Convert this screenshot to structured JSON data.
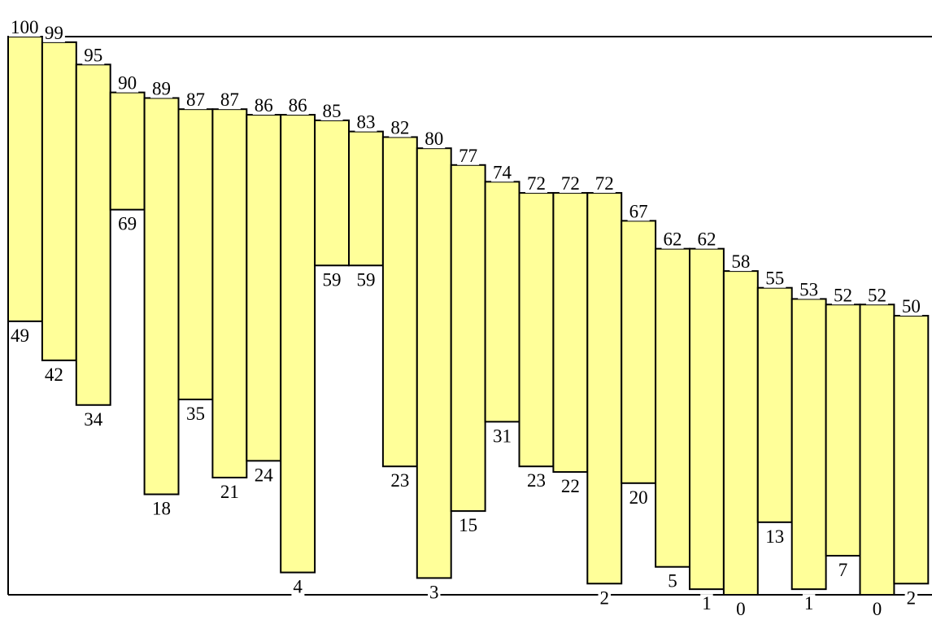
{
  "chart_data": {
    "type": "floating-bar",
    "title": "",
    "xlabel": "",
    "ylabel": "",
    "ylim": [
      0,
      100
    ],
    "bar_color": "#ffff99",
    "edge_color": "#000000",
    "grid": false,
    "legend": "none",
    "series": [
      {
        "high": [
          100,
          99,
          95,
          90,
          89,
          87,
          87,
          86,
          86,
          85,
          83,
          82,
          80,
          77,
          74,
          72,
          72,
          72,
          67,
          62,
          62,
          58,
          55,
          53,
          52,
          52,
          50
        ],
        "low": [
          49,
          42,
          34,
          69,
          18,
          35,
          21,
          24,
          4,
          59,
          59,
          23,
          3,
          15,
          31,
          23,
          22,
          2,
          20,
          5,
          1,
          0,
          13,
          1,
          7,
          0,
          2
        ]
      }
    ]
  }
}
